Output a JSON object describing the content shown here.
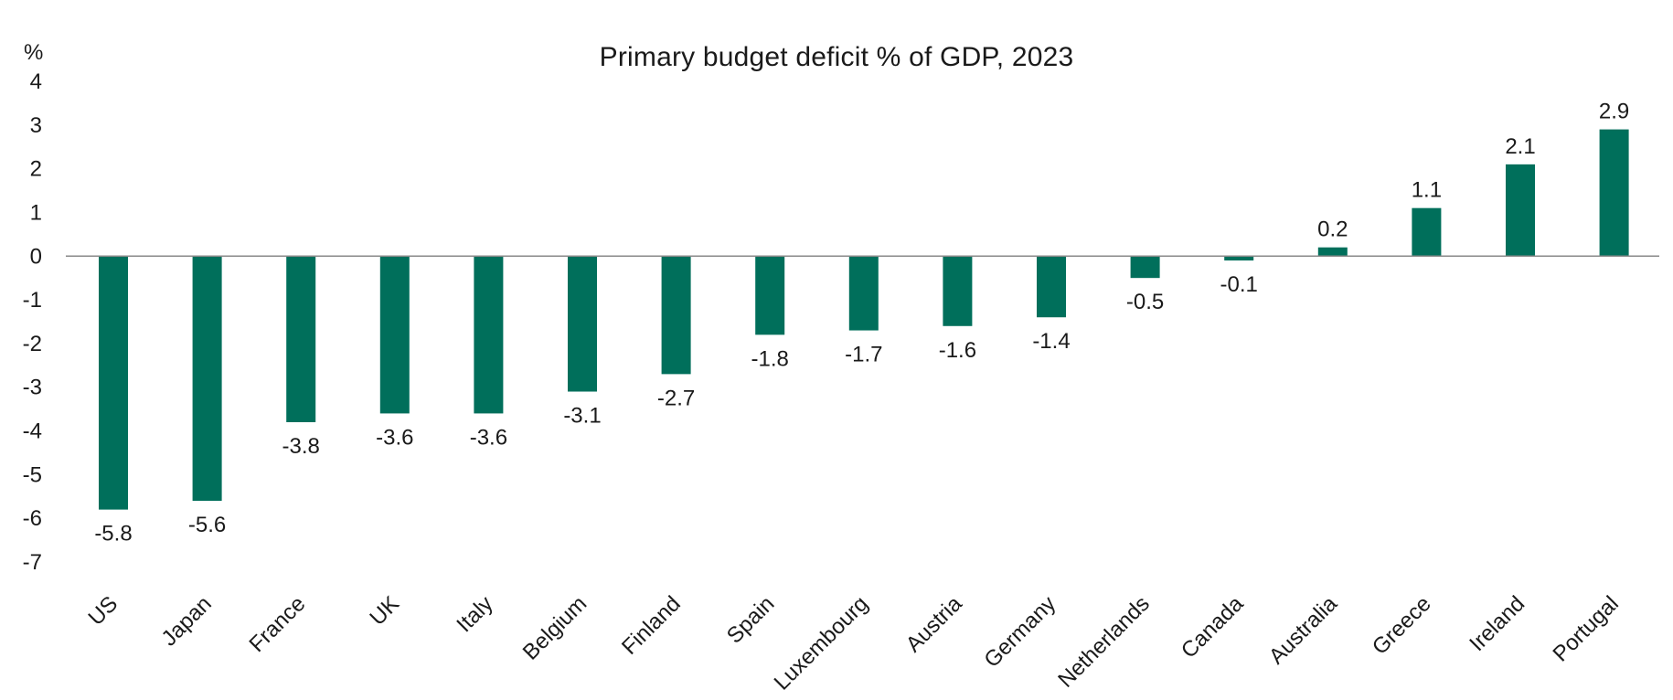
{
  "chart_data": {
    "type": "bar",
    "title": "Primary budget deficit % of GDP, 2023",
    "unit_label": "%",
    "xlabel": "",
    "ylabel": "",
    "ylim": [
      -7,
      4
    ],
    "yticks": [
      4,
      3,
      2,
      1,
      0,
      -1,
      -2,
      -3,
      -4,
      -5,
      -6,
      -7
    ],
    "grid": false,
    "legend": "none",
    "bar_color": "#006F5B",
    "categories": [
      "US",
      "Japan",
      "France",
      "UK",
      "Italy",
      "Belgium",
      "Finland",
      "Spain",
      "Luxembourg",
      "Austria",
      "Germany",
      "Netherlands",
      "Canada",
      "Australia",
      "Greece",
      "Ireland",
      "Portugal"
    ],
    "values": [
      -5.8,
      -5.6,
      -3.8,
      -3.6,
      -3.6,
      -3.1,
      -2.7,
      -1.8,
      -1.7,
      -1.6,
      -1.4,
      -0.5,
      -0.1,
      0.2,
      1.1,
      2.1,
      2.9
    ],
    "data_labels": [
      "-5.8",
      "-5.6",
      "-3.8",
      "-3.6",
      "-3.6",
      "-3.1",
      "-2.7",
      "-1.8",
      "-1.7",
      "-1.6",
      "-1.4",
      "-0.5",
      "-0.1",
      "0.2",
      "1.1",
      "2.1",
      "2.9"
    ]
  }
}
